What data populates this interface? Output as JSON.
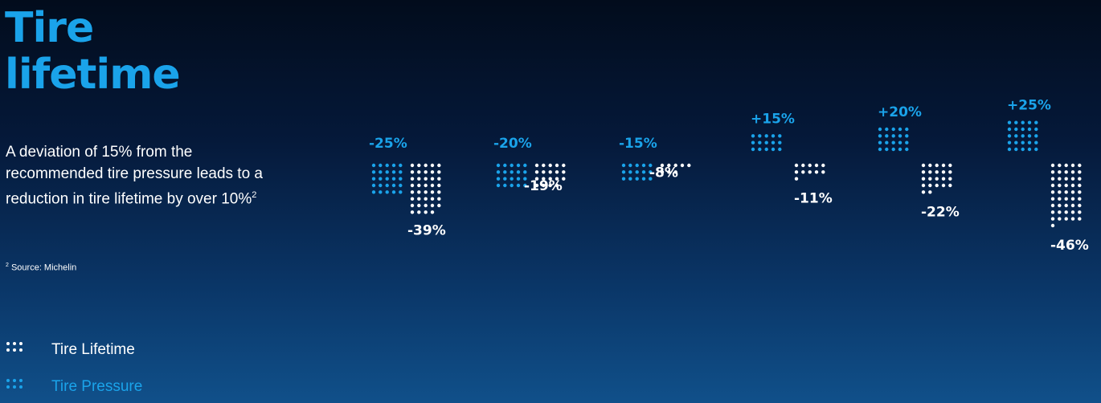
{
  "title_line1": "Tire",
  "title_line2": "lifetime",
  "description": "A deviation of 15% from the recommended tire pressure leads to a reduction in tire lifetime by over 10%",
  "description_sup": "2",
  "source_sup": "2",
  "source": "Source: Michelin",
  "colors": {
    "lifetime": "#ffffff",
    "pressure": "#1aa3ea"
  },
  "legend": [
    {
      "label": "Tire Lifetime",
      "color": "#ffffff",
      "icon": "white-dot-grid-icon"
    },
    {
      "label": "Tire Pressure",
      "color": "#1aa3ea",
      "icon": "blue-dot-grid-icon"
    }
  ],
  "chart_data": {
    "type": "bar",
    "categories": [
      "-25%",
      "-20%",
      "-15%",
      "+15%",
      "+20%",
      "+25%"
    ],
    "series": [
      {
        "name": "Tire Pressure",
        "values": [
          -25,
          -20,
          -15,
          15,
          20,
          25
        ],
        "labels": [
          "-25%",
          "-20%",
          "-15%",
          "+15%",
          "+20%",
          "+25%"
        ]
      },
      {
        "name": "Tire Lifetime",
        "values": [
          -39,
          -19,
          -8,
          -11,
          -22,
          -46
        ],
        "labels": [
          "-39%",
          "-19%",
          "-8%",
          "-11%",
          "-22%",
          "-46%"
        ]
      }
    ],
    "legend_position": "bottom-left",
    "grid": false
  }
}
